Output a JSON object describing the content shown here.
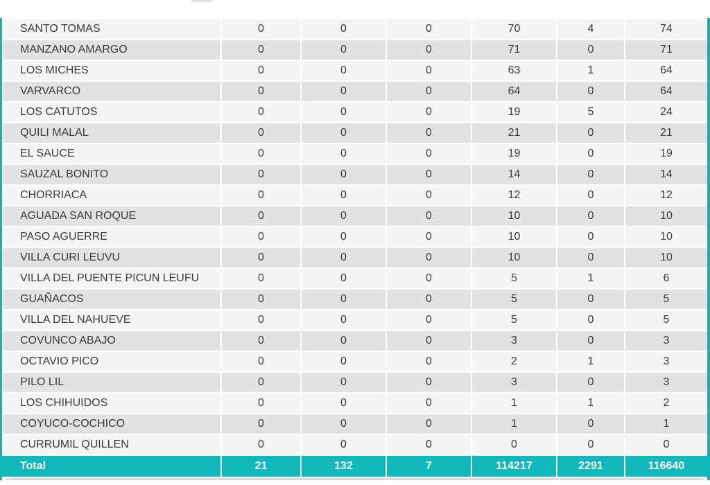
{
  "chart_data": {
    "type": "table",
    "title": "",
    "columns_visible": false,
    "rows": [
      {
        "name": "SANTO TOMAS",
        "values": [
          0,
          0,
          0,
          70,
          4,
          74
        ]
      },
      {
        "name": "MANZANO AMARGO",
        "values": [
          0,
          0,
          0,
          71,
          0,
          71
        ]
      },
      {
        "name": "LOS MICHES",
        "values": [
          0,
          0,
          0,
          63,
          1,
          64
        ]
      },
      {
        "name": "VARVARCO",
        "values": [
          0,
          0,
          0,
          64,
          0,
          64
        ]
      },
      {
        "name": "LOS CATUTOS",
        "values": [
          0,
          0,
          0,
          19,
          5,
          24
        ]
      },
      {
        "name": "QUILI MALAL",
        "values": [
          0,
          0,
          0,
          21,
          0,
          21
        ]
      },
      {
        "name": "EL SAUCE",
        "values": [
          0,
          0,
          0,
          19,
          0,
          19
        ]
      },
      {
        "name": "SAUZAL BONITO",
        "values": [
          0,
          0,
          0,
          14,
          0,
          14
        ]
      },
      {
        "name": "CHORRIACA",
        "values": [
          0,
          0,
          0,
          12,
          0,
          12
        ]
      },
      {
        "name": "AGUADA SAN ROQUE",
        "values": [
          0,
          0,
          0,
          10,
          0,
          10
        ]
      },
      {
        "name": "PASO AGUERRE",
        "values": [
          0,
          0,
          0,
          10,
          0,
          10
        ]
      },
      {
        "name": "VILLA CURI LEUVU",
        "values": [
          0,
          0,
          0,
          10,
          0,
          10
        ]
      },
      {
        "name": "VILLA DEL PUENTE PICUN LEUFU",
        "values": [
          0,
          0,
          0,
          5,
          1,
          6
        ]
      },
      {
        "name": "GUAÑACOS",
        "values": [
          0,
          0,
          0,
          5,
          0,
          5
        ]
      },
      {
        "name": "VILLA DEL NAHUEVE",
        "values": [
          0,
          0,
          0,
          5,
          0,
          5
        ]
      },
      {
        "name": "COVUNCO ABAJO",
        "values": [
          0,
          0,
          0,
          3,
          0,
          3
        ]
      },
      {
        "name": "OCTAVIO PICO",
        "values": [
          0,
          0,
          0,
          2,
          1,
          3
        ]
      },
      {
        "name": "PILO LIL",
        "values": [
          0,
          0,
          0,
          3,
          0,
          3
        ]
      },
      {
        "name": "LOS CHIHUIDOS",
        "values": [
          0,
          0,
          0,
          1,
          1,
          2
        ]
      },
      {
        "name": "COYUCO-COCHICO",
        "values": [
          0,
          0,
          0,
          1,
          0,
          1
        ]
      },
      {
        "name": "CURRUMIL QUILLEN",
        "values": [
          0,
          0,
          0,
          0,
          0,
          0
        ]
      }
    ],
    "total_row": {
      "label": "Total",
      "values": [
        21,
        132,
        7,
        114217,
        2291,
        116640
      ]
    }
  },
  "colors": {
    "teal": "#10b8bc",
    "teal_edge": "#2aa9ad",
    "row_light": "#f5f5f5",
    "row_dark": "#e2e2e2",
    "text_dark": "#3a3a3a",
    "total_text": "#ffffff"
  }
}
